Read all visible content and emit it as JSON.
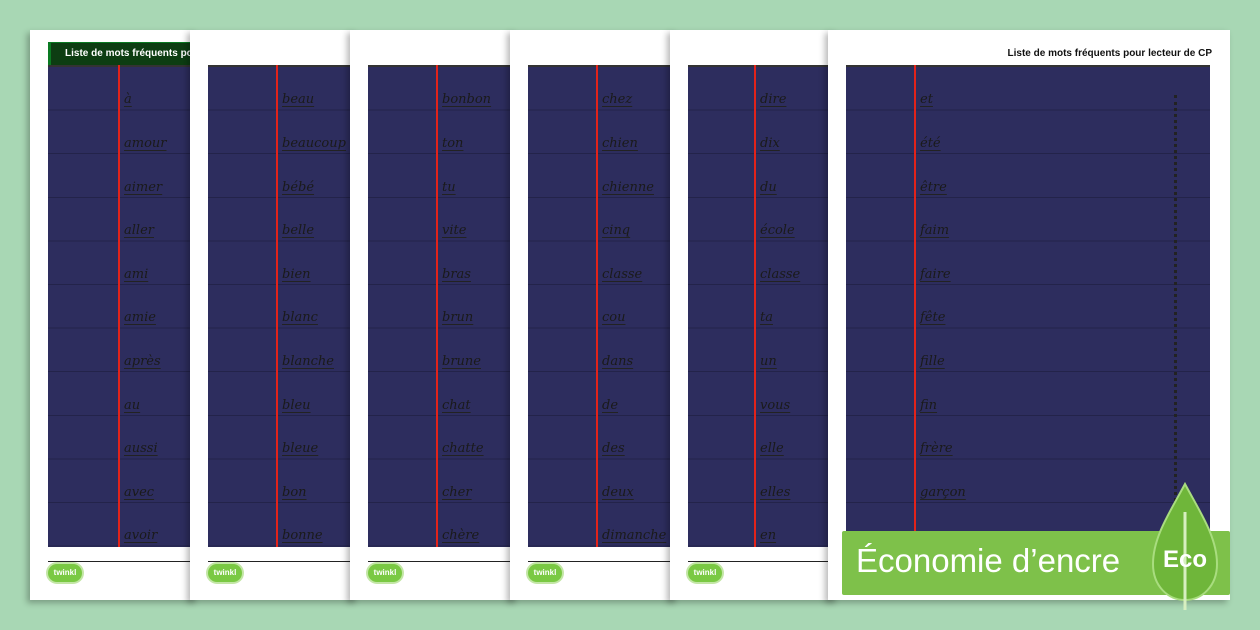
{
  "sheets": [
    {
      "title": "Liste de mots fréquents pour",
      "logo": "twinkl",
      "words": [
        "à",
        "amour",
        "aimer",
        "aller",
        "ami",
        "amie",
        "après",
        "au",
        "aussi",
        "avec",
        "avoir"
      ]
    },
    {
      "logo": "twinkl",
      "words": [
        "beau",
        "beaucoup",
        "bébé",
        "belle",
        "bien",
        "blanc",
        "blanche",
        "bleu",
        "bleue",
        "bon",
        "bonne"
      ]
    },
    {
      "logo": "twinkl",
      "words": [
        "bonbon",
        "ton",
        "tu",
        "vite",
        "bras",
        "brun",
        "brune",
        "chat",
        "chatte",
        "cher",
        "chère"
      ]
    },
    {
      "logo": "twinkl",
      "words": [
        "chez",
        "chien",
        "chienne",
        "cinq",
        "classe",
        "cou",
        "dans",
        "de",
        "des",
        "deux",
        "dimanche"
      ]
    },
    {
      "logo": "twinkl",
      "words": [
        "dire",
        "dix",
        "du",
        "école",
        "classe",
        "ta",
        "un",
        "vous",
        "elle",
        "elles",
        "en"
      ]
    },
    {
      "title": "Liste de mots fréquents pour lecteur de CP",
      "words": [
        "et",
        "été",
        "être",
        "faim",
        "faire",
        "fête",
        "fille",
        "fin",
        "frère",
        "garçon"
      ]
    }
  ],
  "banner": {
    "text": "Économie d’encre",
    "badge": "Eco"
  },
  "colors": {
    "background": "#a8d7b4",
    "margin_line": "#e2231a",
    "title_bar": "#0d3d12",
    "banner": "#7ec14a"
  }
}
